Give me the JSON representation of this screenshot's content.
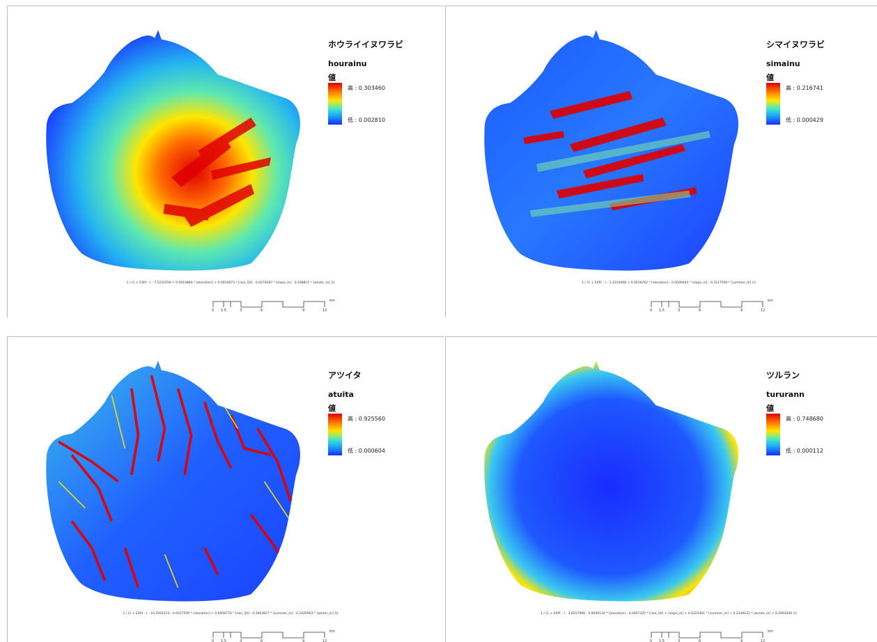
{
  "colors": {
    "high": "#e00000",
    "mid": "#ffe600",
    "low": "#1a2cff",
    "background": "#ffffff"
  },
  "panels": [
    {
      "title": "ホウライイヌワラビ",
      "varname": "hourainu",
      "value_label": "値",
      "high_label": "高 : 0.303460",
      "low_label": "低 : 0.002810",
      "equation": "1 / (1 + EXP( - ( - 7.5231559 + 0.0010884 * [elevation] + 0.0014873 * [rain_50] - 0.0279287 * [slope_m] - 0.108811 * [winter_m] )))",
      "pattern": "center"
    },
    {
      "title": "シマイヌワラビ",
      "varname": "simainu",
      "value_label": "値",
      "high_label": "高 : 0.216741",
      "low_label": "低 : 0.000429",
      "equation": "1 / (1 + EXP( - ( - 2.2220408 + 0.0016762 * [elevation] - 0.0000443 * [slope_m] - 0.3117500 * [summer_m] )))",
      "pattern": "ridges"
    },
    {
      "title": "アツイタ",
      "varname": "atuita",
      "value_label": "値",
      "high_label": "高 : 0.925560",
      "low_label": "低 : 0.000604",
      "equation": "1 / (1 + EXP( - ( - 10.2932213 - 0.0017509 * [elevation] + 0.0008774 * [rain_50] - 0.2903827 * [summer_m] - 0.2426903 * [winter_m] )))",
      "pattern": "valleys"
    },
    {
      "title": "ツルラン",
      "varname": "tururann",
      "value_label": "値",
      "high_label": "高 : 0.748680",
      "low_label": "低 : 0.000112",
      "equation": "1 / (1 + EXP( - ( - 3.8257998 - 0.0040110 * [elevation] - 0.0007325 * [rain_50] + [slope_m] + 0.0325461 * [summer_m] + 0.2249122 * [winter_m] + 0.0063040 )))",
      "pattern": "coast"
    }
  ],
  "scalebar": {
    "ticks": [
      "0",
      "1.5",
      "3",
      "6",
      "9",
      "12"
    ],
    "unit": "km"
  }
}
